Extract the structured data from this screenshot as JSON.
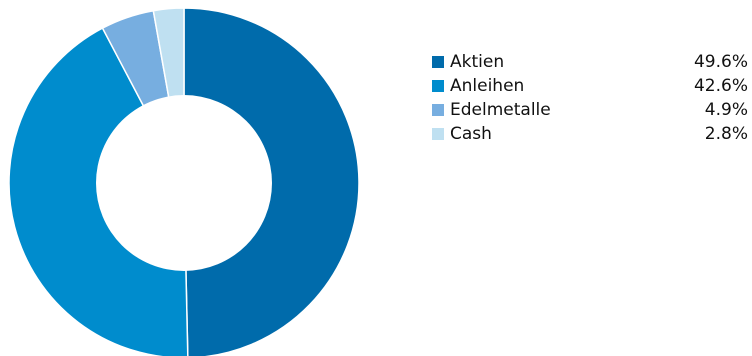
{
  "chart_data": {
    "type": "pie",
    "hole": true,
    "series": [
      {
        "name": "Aktien",
        "value": 49.6,
        "label": "49.6%",
        "color": "#006bab"
      },
      {
        "name": "Anleihen",
        "value": 42.6,
        "label": "42.6%",
        "color": "#008ccd"
      },
      {
        "name": "Edelmetalle",
        "value": 4.9,
        "label": "4.9%",
        "color": "#77aee0"
      },
      {
        "name": "Cash",
        "value": 2.8,
        "label": "2.8%",
        "color": "#bfe0f1"
      }
    ],
    "legend_position": "right"
  }
}
